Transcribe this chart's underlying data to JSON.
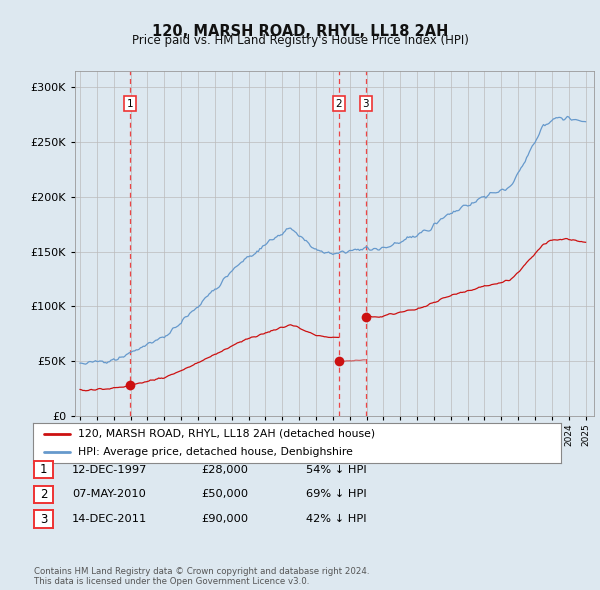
{
  "title": "120, MARSH ROAD, RHYL, LL18 2AH",
  "subtitle": "Price paid vs. HM Land Registry's House Price Index (HPI)",
  "yticks": [
    0,
    50000,
    100000,
    150000,
    200000,
    250000,
    300000
  ],
  "background_color": "#dde8f0",
  "plot_bg_color": "#dde8f0",
  "hpi_color": "#6699cc",
  "price_color": "#cc1111",
  "dashed_line_color": "#ee3333",
  "transactions": [
    {
      "date_num": 1997.95,
      "price": 28000,
      "label": "1"
    },
    {
      "date_num": 2010.37,
      "price": 50000,
      "label": "2"
    },
    {
      "date_num": 2011.95,
      "price": 90000,
      "label": "3"
    }
  ],
  "legend_property_label": "120, MARSH ROAD, RHYL, LL18 2AH (detached house)",
  "legend_hpi_label": "HPI: Average price, detached house, Denbighshire",
  "table_rows": [
    {
      "num": "1",
      "date": "12-DEC-1997",
      "price": "£28,000",
      "pct": "54% ↓ HPI"
    },
    {
      "num": "2",
      "date": "07-MAY-2010",
      "price": "£50,000",
      "pct": "69% ↓ HPI"
    },
    {
      "num": "3",
      "date": "14-DEC-2011",
      "price": "£90,000",
      "pct": "42% ↓ HPI"
    }
  ],
  "footer": "Contains HM Land Registry data © Crown copyright and database right 2024.\nThis data is licensed under the Open Government Licence v3.0.",
  "xlim_start": 1994.7,
  "xlim_end": 2025.5,
  "ylim_top": 315000
}
